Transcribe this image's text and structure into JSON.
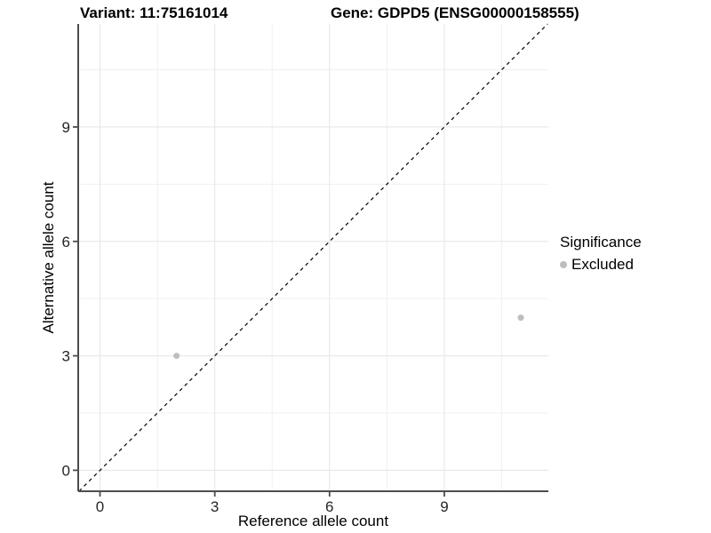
{
  "chart_data": {
    "type": "scatter",
    "title_left": "Variant: 11:75161014",
    "title_right": "Gene: GDPD5 (ENSG00000158555)",
    "xlabel": "Reference allele count",
    "ylabel": "Alternative allele count",
    "xlim": [
      -0.57,
      11.72
    ],
    "ylim": [
      -0.55,
      11.7
    ],
    "x_major_ticks": [
      0,
      3,
      6,
      9
    ],
    "y_major_ticks": [
      0,
      3,
      6,
      9
    ],
    "x_minor_ticks": [
      1.5,
      4.5,
      7.5,
      10.5
    ],
    "y_minor_ticks": [
      1.5,
      4.5,
      7.5,
      10.5
    ],
    "grid": "major+minor",
    "reference_line": {
      "type": "identity",
      "slope": 1,
      "intercept": 0,
      "style": "dashed",
      "color": "#000000"
    },
    "series": [
      {
        "name": "Excluded",
        "color": "#bdbdbd",
        "marker": "circle",
        "points": [
          [
            2,
            3
          ],
          [
            11,
            4
          ]
        ]
      }
    ],
    "legend": {
      "title": "Significance",
      "position": "right",
      "entries": [
        {
          "label": "Excluded",
          "color": "#bdbdbd"
        }
      ]
    },
    "colors": {
      "background": "#ffffff",
      "grid_major": "#e5e5e5",
      "grid_minor": "#f0f0f0",
      "axis_line": "#4d4d4d",
      "tick_mark": "#4d4d4d",
      "tick_label": "#262626"
    }
  }
}
